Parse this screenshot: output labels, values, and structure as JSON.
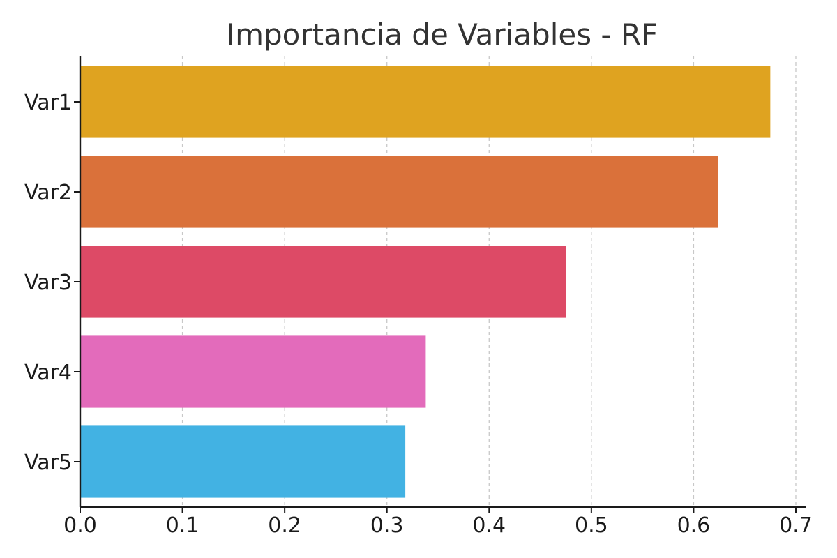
{
  "chart_data": {
    "type": "bar",
    "orientation": "horizontal",
    "title": "Importancia de Variables - RF",
    "xlabel": "",
    "ylabel": "",
    "categories": [
      "Var1",
      "Var2",
      "Var3",
      "Var4",
      "Var5"
    ],
    "values": [
      0.675,
      0.624,
      0.475,
      0.338,
      0.318
    ],
    "colors": [
      "#DFA320",
      "#DA713A",
      "#DD4A66",
      "#E36BBB",
      "#42B2E3"
    ],
    "xlim": [
      0,
      0.7
    ],
    "xticks": [
      0.0,
      0.1,
      0.2,
      0.3,
      0.4,
      0.5,
      0.6,
      0.7
    ],
    "xtick_labels": [
      "0.0",
      "0.1",
      "0.2",
      "0.3",
      "0.4",
      "0.5",
      "0.6",
      "0.7"
    ],
    "grid": "vertical-dashed",
    "legend": "none"
  }
}
